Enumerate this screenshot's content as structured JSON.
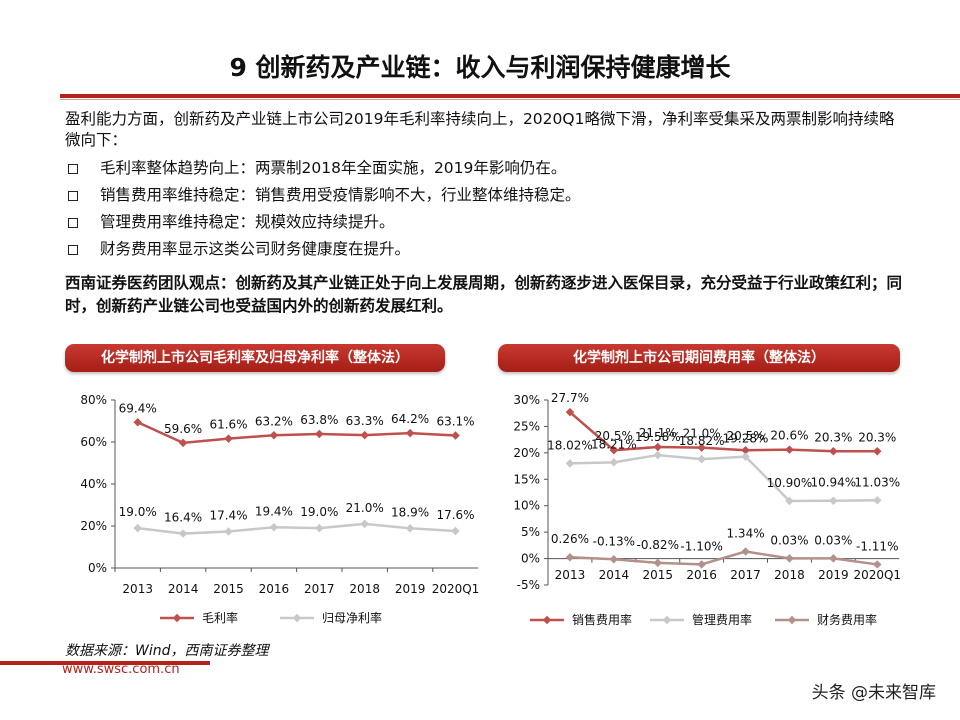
{
  "title": "9 创新药及产业链：收入与利润保持健康增长",
  "intro": "盈利能力方面，创新药及产业链上市公司2019年毛利率持续向上，2020Q1略微下滑，净利率受集采及两票制影响持续略微向下：",
  "bullets": [
    "毛利率整体趋势向上：两票制2018年全面实施，2019年影响仍在。",
    "销售费用率维持稳定：销售费用受疫情影响不大，行业整体维持稳定。",
    "管理费用率维持稳定：规模效应持续提升。",
    "财务费用率显示这类公司财务健康度在提升。"
  ],
  "view": "西南证券医药团队观点：创新药及其产业链正处于向上发展周期，创新药逐步进入医保目录，充分受益于行业政策红利；同时，创新药产业链公司也受益国内外的创新药发展红利。",
  "source": "数据来源：Wind，西南证券整理",
  "url": "www.swsc.com.cn",
  "watermark": "头条 @未来智库",
  "colors": {
    "brand": "#b5221b",
    "series_red": "#c0504d",
    "series_gray": "#c8c8c8",
    "series_brown": "#b39089"
  },
  "chart_data": [
    {
      "type": "line",
      "title": "化学制剂上市公司毛利率及归母净利率（整体法）",
      "categories": [
        "2013",
        "2014",
        "2015",
        "2016",
        "2017",
        "2018",
        "2019",
        "2020Q1"
      ],
      "ylim": [
        0,
        80
      ],
      "yticks": [
        "0%",
        "20%",
        "40%",
        "60%",
        "80%"
      ],
      "grid": false,
      "legend": "bottom",
      "series": [
        {
          "name": "毛利率",
          "values": [
            69.4,
            59.6,
            61.6,
            63.2,
            63.8,
            63.3,
            64.2,
            63.1
          ],
          "labels": [
            "69.4%",
            "59.6%",
            "61.6%",
            "63.2%",
            "63.8%",
            "63.3%",
            "64.2%",
            "63.1%"
          ],
          "color": "#c0504d"
        },
        {
          "name": "归母净利率",
          "values": [
            19.0,
            16.4,
            17.4,
            19.4,
            19.0,
            21.0,
            18.9,
            17.6
          ],
          "labels": [
            "19.0%",
            "16.4%",
            "17.4%",
            "19.4%",
            "19.0%",
            "21.0%",
            "18.9%",
            "17.6%"
          ],
          "color": "#c8c8c8"
        }
      ]
    },
    {
      "type": "line",
      "title": "化学制剂上市公司期间费用率（整体法）",
      "categories": [
        "2013",
        "2014",
        "2015",
        "2016",
        "2017",
        "2018",
        "2019",
        "2020Q1"
      ],
      "ylim": [
        -5,
        30
      ],
      "yticks": [
        "-5%",
        "0%",
        "5%",
        "10%",
        "15%",
        "20%",
        "25%",
        "30%"
      ],
      "grid": false,
      "legend": "bottom",
      "series": [
        {
          "name": "销售费用率",
          "values": [
            27.7,
            20.5,
            21.1,
            21.0,
            20.5,
            20.6,
            20.3,
            20.3
          ],
          "labels": [
            "27.7%",
            "20.5%",
            "21.1%",
            "21.0%",
            "20.5%",
            "20.6%",
            "20.3%",
            "20.3%"
          ],
          "color": "#c0504d"
        },
        {
          "name": "管理费用率",
          "values": [
            18.02,
            18.21,
            19.58,
            18.82,
            19.28,
            10.9,
            10.94,
            11.03
          ],
          "labels": [
            "18.02%",
            "18.21%",
            "19.58%",
            "18.82%",
            "19.28%",
            "10.90%",
            "10.94%",
            "11.03%"
          ],
          "color": "#c8c8c8"
        },
        {
          "name": "财务费用率",
          "values": [
            0.26,
            -0.13,
            -0.82,
            -1.1,
            1.34,
            0.03,
            0.03,
            -1.11
          ],
          "labels": [
            "0.26%",
            "-0.13%",
            "-0.82%",
            "-1.10%",
            "1.34%",
            "0.03%",
            "0.03%",
            "-1.11%"
          ],
          "color": "#b39089"
        }
      ]
    }
  ]
}
